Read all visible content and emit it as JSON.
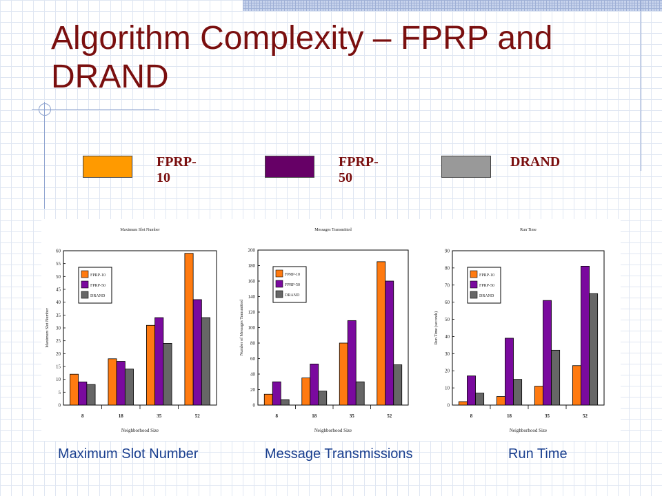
{
  "slide": {
    "title": "Algorithm Complexity – FPRP and DRAND"
  },
  "legend": {
    "items": [
      {
        "label": "FPRP-10",
        "color": "#FF9A00"
      },
      {
        "label": "FPRP-50",
        "color": "#660066"
      },
      {
        "label": "DRAND",
        "color": "#999999"
      }
    ]
  },
  "captions": [
    "Maximum Slot Number",
    "Message Transmissions",
    "Run Time"
  ],
  "colors": {
    "title": "#7a0f0f",
    "caption": "#1a3f8f",
    "chart_series": [
      "#FF7A10",
      "#7A0A9E",
      "#666666"
    ]
  },
  "chart_data": [
    {
      "type": "bar",
      "title": "Maximum Slot Number",
      "xlabel": "Neighborhood Size",
      "ylabel": "Maximum Slot Number",
      "categories": [
        "8",
        "18",
        "35",
        "52"
      ],
      "ylim": [
        0,
        60
      ],
      "yticks": [
        0,
        5,
        10,
        15,
        20,
        25,
        30,
        35,
        40,
        45,
        50,
        55,
        60
      ],
      "legend_position": "upper-left",
      "series": [
        {
          "name": "FPRP-10",
          "values": [
            12,
            18,
            31,
            59
          ]
        },
        {
          "name": "FPRP-50",
          "values": [
            9,
            17,
            34,
            41
          ]
        },
        {
          "name": "DRAND",
          "values": [
            8,
            14,
            24,
            34
          ]
        }
      ]
    },
    {
      "type": "bar",
      "title": "Messages Transmitted",
      "xlabel": "Neighborhood Size",
      "ylabel": "Number of Messages Transmitted",
      "categories": [
        "8",
        "18",
        "35",
        "52"
      ],
      "ylim": [
        0,
        200
      ],
      "yticks": [
        0,
        20,
        40,
        60,
        80,
        100,
        120,
        140,
        160,
        180,
        200
      ],
      "legend_position": "upper-left",
      "series": [
        {
          "name": "FPRP-10",
          "values": [
            14,
            35,
            80,
            185
          ]
        },
        {
          "name": "FPRP-50",
          "values": [
            30,
            53,
            109,
            160
          ]
        },
        {
          "name": "DRAND",
          "values": [
            7,
            18,
            30,
            52
          ]
        }
      ]
    },
    {
      "type": "bar",
      "title": "Run Time",
      "xlabel": "Neighborhood Size",
      "ylabel": "Run Time (seconds)",
      "categories": [
        "8",
        "18",
        "35",
        "52"
      ],
      "ylim": [
        0,
        90
      ],
      "yticks": [
        0,
        10,
        20,
        30,
        40,
        50,
        60,
        70,
        80,
        90
      ],
      "legend_position": "upper-left",
      "series": [
        {
          "name": "FPRP-10",
          "values": [
            2,
            5,
            11,
            23
          ]
        },
        {
          "name": "FPRP-50",
          "values": [
            17,
            39,
            61,
            81
          ]
        },
        {
          "name": "DRAND",
          "values": [
            7,
            15,
            32,
            65
          ]
        }
      ]
    }
  ]
}
